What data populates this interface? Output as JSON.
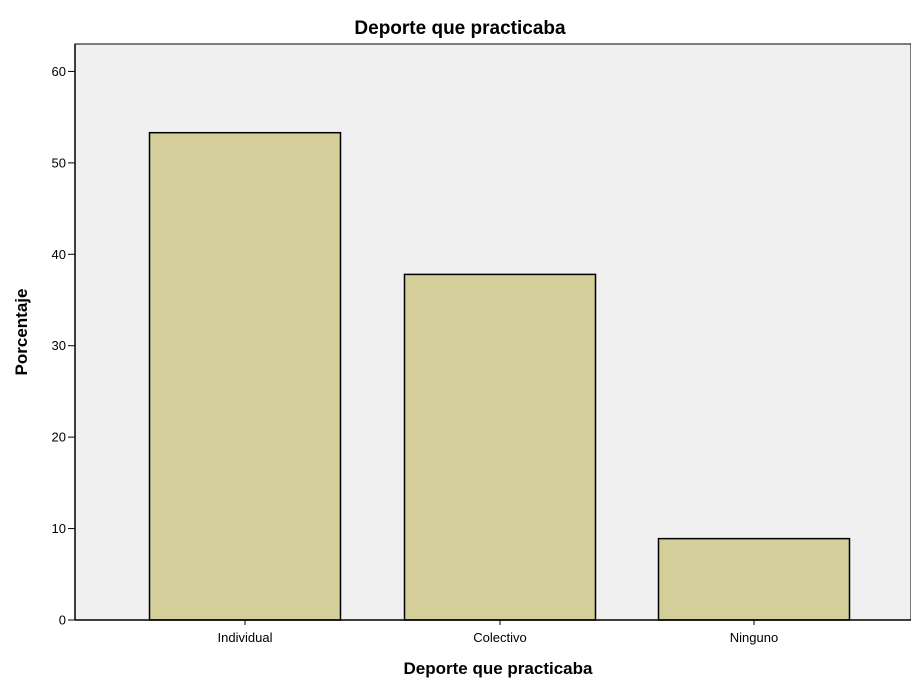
{
  "chart_data": {
    "type": "bar",
    "title": "Deporte que practicaba",
    "xlabel": "Deporte que practicaba",
    "ylabel": "Porcentaje",
    "categories": [
      "Individual",
      "Colectivo",
      "Ninguno"
    ],
    "values": [
      53.3,
      37.8,
      8.9
    ],
    "ylim": [
      0,
      63
    ],
    "yticks": [
      0,
      10,
      20,
      30,
      40,
      50,
      60
    ],
    "grid": false,
    "colors": {
      "bar_fill": "#d3ce9a",
      "bar_stroke": "#000000",
      "plot_background": "#f0f0f0"
    }
  }
}
